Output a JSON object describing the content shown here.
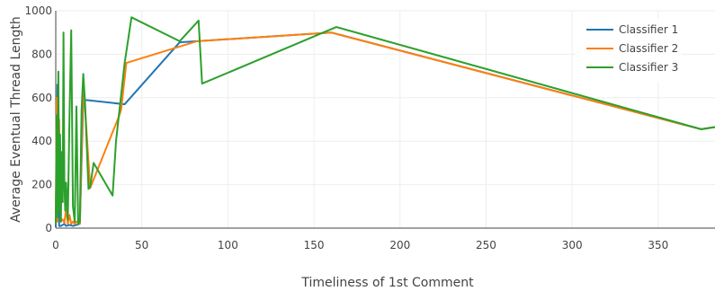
{
  "chart_data": {
    "type": "line",
    "xlabel": "Timeliness of 1st Comment",
    "ylabel": "Average Eventual Thread Length",
    "xlim": [
      0,
      383
    ],
    "ylim": [
      0,
      1000
    ],
    "x_ticks": [
      0,
      50,
      100,
      150,
      200,
      250,
      300,
      350
    ],
    "y_ticks": [
      0,
      200,
      400,
      600,
      800,
      1000
    ],
    "grid": true,
    "legend_position": "top-right",
    "series": [
      {
        "name": "Classifier 1",
        "color": "#1f77b4",
        "points": [
          [
            0,
            5
          ],
          [
            1,
            660
          ],
          [
            2,
            10
          ],
          [
            3,
            10
          ],
          [
            5,
            20
          ],
          [
            6,
            10
          ],
          [
            8,
            15
          ],
          [
            10,
            10
          ],
          [
            12,
            15
          ],
          [
            14,
            20
          ],
          [
            16,
            590
          ],
          [
            17,
            590
          ],
          [
            40,
            570
          ],
          [
            72,
            855
          ],
          [
            160,
            900
          ],
          [
            375,
            455
          ],
          [
            383,
            465
          ]
        ]
      },
      {
        "name": "Classifier 2",
        "color": "#ff7f0e",
        "points": [
          [
            0,
            20
          ],
          [
            0.5,
            600
          ],
          [
            1,
            30
          ],
          [
            2,
            500
          ],
          [
            3,
            30
          ],
          [
            4,
            40
          ],
          [
            5,
            25
          ],
          [
            6,
            90
          ],
          [
            7,
            20
          ],
          [
            8,
            60
          ],
          [
            9,
            20
          ],
          [
            10,
            30
          ],
          [
            11,
            20
          ],
          [
            12,
            30
          ],
          [
            13,
            25
          ],
          [
            14,
            20
          ],
          [
            16,
            680
          ],
          [
            20,
            185
          ],
          [
            37,
            520
          ],
          [
            38,
            545
          ],
          [
            41,
            760
          ],
          [
            82,
            860
          ],
          [
            160,
            900
          ],
          [
            375,
            455
          ],
          [
            383,
            465
          ]
        ]
      },
      {
        "name": "Classifier 3",
        "color": "#2ca02c",
        "points": [
          [
            0,
            20
          ],
          [
            0.5,
            520
          ],
          [
            1,
            50
          ],
          [
            1.5,
            720
          ],
          [
            2,
            80
          ],
          [
            2.5,
            430
          ],
          [
            3,
            30
          ],
          [
            3.5,
            350
          ],
          [
            4,
            120
          ],
          [
            4.5,
            900
          ],
          [
            5,
            200
          ],
          [
            5.5,
            80
          ],
          [
            6,
            210
          ],
          [
            7,
            40
          ],
          [
            8,
            520
          ],
          [
            9,
            910
          ],
          [
            10,
            100
          ],
          [
            11,
            30
          ],
          [
            12,
            560
          ],
          [
            13,
            20
          ],
          [
            14,
            30
          ],
          [
            15,
            540
          ],
          [
            16,
            710
          ],
          [
            17,
            580
          ],
          [
            19,
            180
          ],
          [
            20,
            190
          ],
          [
            22,
            300
          ],
          [
            33,
            150
          ],
          [
            35,
            400
          ],
          [
            40,
            760
          ],
          [
            44,
            970
          ],
          [
            72,
            860
          ],
          [
            83,
            955
          ],
          [
            85,
            665
          ],
          [
            163,
            925
          ],
          [
            375,
            455
          ],
          [
            383,
            465
          ]
        ]
      }
    ]
  }
}
